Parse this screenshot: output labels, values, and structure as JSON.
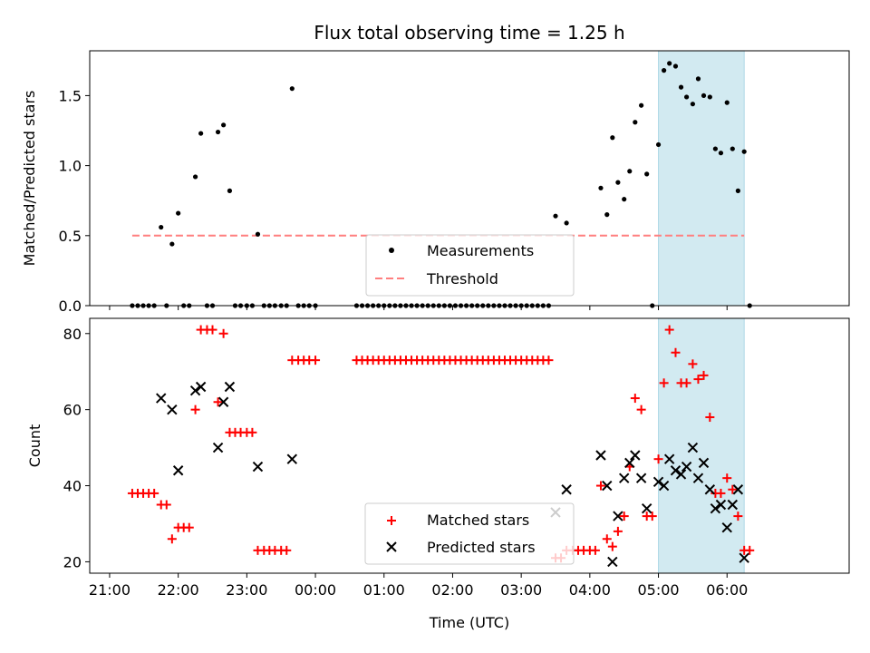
{
  "figure": {
    "title": "Flux total observing time = 1.25 h",
    "x_ticks": [
      "21:00",
      "22:00",
      "23:00",
      "00:00",
      "01:00",
      "02:00",
      "03:00",
      "04:00",
      "05:00",
      "06:00"
    ],
    "x_tick_hours": [
      21,
      22,
      23,
      24,
      25,
      26,
      27,
      28,
      29,
      30
    ],
    "xlabel": "Time (UTC)",
    "xlim_hours": [
      20.71,
      31.78
    ],
    "shaded_span_hours": [
      29.0,
      30.25
    ],
    "shade_color": "#add8e6",
    "note": "x values are hours after 00:00 of the first night; values >= 24 are after midnight"
  },
  "chart_data": [
    {
      "type": "scatter",
      "ylabel": "Matched/Predicted stars",
      "ylim": [
        0,
        1.82
      ],
      "y_ticks": [
        "0.0",
        "0.5",
        "1.0",
        "1.5"
      ],
      "y_tick_values": [
        0,
        0.5,
        1.0,
        1.5
      ],
      "legend": {
        "placement": "lower-center",
        "entries": [
          {
            "label": "Measurements",
            "marker": "dot",
            "color": "#000000"
          },
          {
            "label": "Threshold",
            "marker": "dashed-line",
            "color": "#ff7f7f"
          }
        ]
      },
      "threshold": {
        "y": 0.5,
        "x_start": 21.33,
        "x_end": 30.25,
        "color": "#ff7f7f"
      },
      "series": [
        {
          "name": "Measurements",
          "color": "#000000",
          "points": [
            [
              21.33,
              0
            ],
            [
              21.41,
              0
            ],
            [
              21.49,
              0
            ],
            [
              21.57,
              0
            ],
            [
              21.65,
              0
            ],
            [
              21.75,
              0.56
            ],
            [
              21.83,
              0
            ],
            [
              21.91,
              0.44
            ],
            [
              22.0,
              0.66
            ],
            [
              22.08,
              0
            ],
            [
              22.16,
              0
            ],
            [
              22.25,
              0.92
            ],
            [
              22.33,
              1.23
            ],
            [
              22.42,
              0
            ],
            [
              22.5,
              0
            ],
            [
              22.58,
              1.24
            ],
            [
              22.66,
              1.29
            ],
            [
              22.75,
              0.82
            ],
            [
              22.83,
              0
            ],
            [
              22.91,
              0
            ],
            [
              23.0,
              0
            ],
            [
              23.08,
              0
            ],
            [
              23.16,
              0.51
            ],
            [
              23.25,
              0
            ],
            [
              23.33,
              0
            ],
            [
              23.41,
              0
            ],
            [
              23.5,
              0
            ],
            [
              23.58,
              0
            ],
            [
              23.66,
              1.55
            ],
            [
              23.75,
              0
            ],
            [
              23.83,
              0
            ],
            [
              23.91,
              0
            ],
            [
              24.0,
              0
            ],
            [
              24.6,
              0
            ],
            [
              24.68,
              0
            ],
            [
              24.76,
              0
            ],
            [
              24.84,
              0
            ],
            [
              24.92,
              0
            ],
            [
              25.0,
              0
            ],
            [
              25.08,
              0
            ],
            [
              25.16,
              0
            ],
            [
              25.24,
              0
            ],
            [
              25.32,
              0
            ],
            [
              25.4,
              0
            ],
            [
              25.48,
              0
            ],
            [
              25.56,
              0
            ],
            [
              25.64,
              0
            ],
            [
              25.72,
              0
            ],
            [
              25.8,
              0
            ],
            [
              25.88,
              0
            ],
            [
              25.96,
              0
            ],
            [
              26.04,
              0
            ],
            [
              26.12,
              0
            ],
            [
              26.2,
              0
            ],
            [
              26.28,
              0
            ],
            [
              26.36,
              0
            ],
            [
              26.44,
              0
            ],
            [
              26.52,
              0
            ],
            [
              26.6,
              0
            ],
            [
              26.68,
              0
            ],
            [
              26.76,
              0
            ],
            [
              26.84,
              0
            ],
            [
              26.92,
              0
            ],
            [
              27.0,
              0
            ],
            [
              27.08,
              0
            ],
            [
              27.16,
              0
            ],
            [
              27.24,
              0
            ],
            [
              27.32,
              0
            ],
            [
              27.4,
              0
            ],
            [
              27.5,
              0.64
            ],
            [
              27.66,
              0.59
            ],
            [
              28.16,
              0.84
            ],
            [
              28.25,
              0.65
            ],
            [
              28.33,
              1.2
            ],
            [
              28.41,
              0.88
            ],
            [
              28.5,
              0.76
            ],
            [
              28.58,
              0.96
            ],
            [
              28.66,
              1.31
            ],
            [
              28.75,
              1.43
            ],
            [
              28.83,
              0.94
            ],
            [
              28.91,
              0
            ],
            [
              29.0,
              1.15
            ],
            [
              29.08,
              1.68
            ],
            [
              29.16,
              1.73
            ],
            [
              29.25,
              1.71
            ],
            [
              29.33,
              1.56
            ],
            [
              29.41,
              1.49
            ],
            [
              29.5,
              1.44
            ],
            [
              29.58,
              1.62
            ],
            [
              29.66,
              1.5
            ],
            [
              29.75,
              1.49
            ],
            [
              29.83,
              1.12
            ],
            [
              29.91,
              1.09
            ],
            [
              30.0,
              1.45
            ],
            [
              30.08,
              1.12
            ],
            [
              30.16,
              0.82
            ],
            [
              30.25,
              1.1
            ],
            [
              30.33,
              0
            ]
          ]
        }
      ]
    },
    {
      "type": "scatter",
      "ylabel": "Count",
      "ylim": [
        17,
        84
      ],
      "y_ticks": [
        "20",
        "40",
        "60",
        "80"
      ],
      "y_tick_values": [
        20,
        40,
        60,
        80
      ],
      "legend": {
        "placement": "lower-center",
        "entries": [
          {
            "label": "Matched stars",
            "marker": "plus",
            "color": "#ff0000"
          },
          {
            "label": "Predicted stars",
            "marker": "x",
            "color": "#000000"
          }
        ]
      },
      "series": [
        {
          "name": "Matched stars",
          "marker": "plus",
          "color": "#ff0000",
          "points": [
            [
              21.33,
              38
            ],
            [
              21.41,
              38
            ],
            [
              21.49,
              38
            ],
            [
              21.57,
              38
            ],
            [
              21.65,
              38
            ],
            [
              21.75,
              35
            ],
            [
              21.83,
              35
            ],
            [
              21.91,
              26
            ],
            [
              22.0,
              29
            ],
            [
              22.08,
              29
            ],
            [
              22.16,
              29
            ],
            [
              22.25,
              60
            ],
            [
              22.33,
              81
            ],
            [
              22.42,
              81
            ],
            [
              22.5,
              81
            ],
            [
              22.58,
              62
            ],
            [
              22.66,
              80
            ],
            [
              22.75,
              54
            ],
            [
              22.83,
              54
            ],
            [
              22.91,
              54
            ],
            [
              23.0,
              54
            ],
            [
              23.08,
              54
            ],
            [
              23.16,
              23
            ],
            [
              23.25,
              23
            ],
            [
              23.33,
              23
            ],
            [
              23.41,
              23
            ],
            [
              23.5,
              23
            ],
            [
              23.58,
              23
            ],
            [
              23.66,
              73
            ],
            [
              23.75,
              73
            ],
            [
              23.83,
              73
            ],
            [
              23.91,
              73
            ],
            [
              24.0,
              73
            ],
            [
              24.6,
              73
            ],
            [
              24.68,
              73
            ],
            [
              24.76,
              73
            ],
            [
              24.84,
              73
            ],
            [
              24.92,
              73
            ],
            [
              25.0,
              73
            ],
            [
              25.08,
              73
            ],
            [
              25.16,
              73
            ],
            [
              25.24,
              73
            ],
            [
              25.32,
              73
            ],
            [
              25.4,
              73
            ],
            [
              25.48,
              73
            ],
            [
              25.56,
              73
            ],
            [
              25.64,
              73
            ],
            [
              25.72,
              73
            ],
            [
              25.8,
              73
            ],
            [
              25.88,
              73
            ],
            [
              25.96,
              73
            ],
            [
              26.04,
              73
            ],
            [
              26.12,
              73
            ],
            [
              26.2,
              73
            ],
            [
              26.28,
              73
            ],
            [
              26.36,
              73
            ],
            [
              26.44,
              73
            ],
            [
              26.52,
              73
            ],
            [
              26.6,
              73
            ],
            [
              26.68,
              73
            ],
            [
              26.76,
              73
            ],
            [
              26.84,
              73
            ],
            [
              26.92,
              73
            ],
            [
              27.0,
              73
            ],
            [
              27.08,
              73
            ],
            [
              27.16,
              73
            ],
            [
              27.24,
              73
            ],
            [
              27.32,
              73
            ],
            [
              27.4,
              73
            ],
            [
              27.5,
              21
            ],
            [
              27.58,
              21
            ],
            [
              27.66,
              23
            ],
            [
              27.75,
              23
            ],
            [
              27.83,
              23
            ],
            [
              27.91,
              23
            ],
            [
              28.0,
              23
            ],
            [
              28.08,
              23
            ],
            [
              28.16,
              40
            ],
            [
              28.25,
              26
            ],
            [
              28.33,
              24
            ],
            [
              28.41,
              28
            ],
            [
              28.5,
              32
            ],
            [
              28.58,
              45
            ],
            [
              28.66,
              63
            ],
            [
              28.75,
              60
            ],
            [
              28.83,
              32
            ],
            [
              28.91,
              32
            ],
            [
              29.0,
              47
            ],
            [
              29.08,
              67
            ],
            [
              29.16,
              81
            ],
            [
              29.25,
              75
            ],
            [
              29.33,
              67
            ],
            [
              29.41,
              67
            ],
            [
              29.5,
              72
            ],
            [
              29.58,
              68
            ],
            [
              29.66,
              69
            ],
            [
              29.75,
              58
            ],
            [
              29.83,
              38
            ],
            [
              29.91,
              38
            ],
            [
              30.0,
              42
            ],
            [
              30.08,
              39
            ],
            [
              30.16,
              32
            ],
            [
              30.25,
              23
            ],
            [
              30.33,
              23
            ]
          ]
        },
        {
          "name": "Predicted stars",
          "marker": "x",
          "color": "#000000",
          "points": [
            [
              21.75,
              63
            ],
            [
              21.91,
              60
            ],
            [
              22.0,
              44
            ],
            [
              22.25,
              65
            ],
            [
              22.33,
              66
            ],
            [
              22.58,
              50
            ],
            [
              22.66,
              62
            ],
            [
              22.75,
              66
            ],
            [
              23.16,
              45
            ],
            [
              23.66,
              47
            ],
            [
              27.5,
              33
            ],
            [
              27.66,
              39
            ],
            [
              28.16,
              48
            ],
            [
              28.25,
              40
            ],
            [
              28.33,
              20
            ],
            [
              28.41,
              32
            ],
            [
              28.5,
              42
            ],
            [
              28.58,
              46
            ],
            [
              28.66,
              48
            ],
            [
              28.75,
              42
            ],
            [
              28.83,
              34
            ],
            [
              29.0,
              41
            ],
            [
              29.08,
              40
            ],
            [
              29.16,
              47
            ],
            [
              29.25,
              44
            ],
            [
              29.33,
              43
            ],
            [
              29.41,
              45
            ],
            [
              29.5,
              50
            ],
            [
              29.58,
              42
            ],
            [
              29.66,
              46
            ],
            [
              29.75,
              39
            ],
            [
              29.83,
              34
            ],
            [
              29.91,
              35
            ],
            [
              30.0,
              29
            ],
            [
              30.08,
              35
            ],
            [
              30.16,
              39
            ],
            [
              30.25,
              21
            ]
          ]
        }
      ]
    }
  ]
}
